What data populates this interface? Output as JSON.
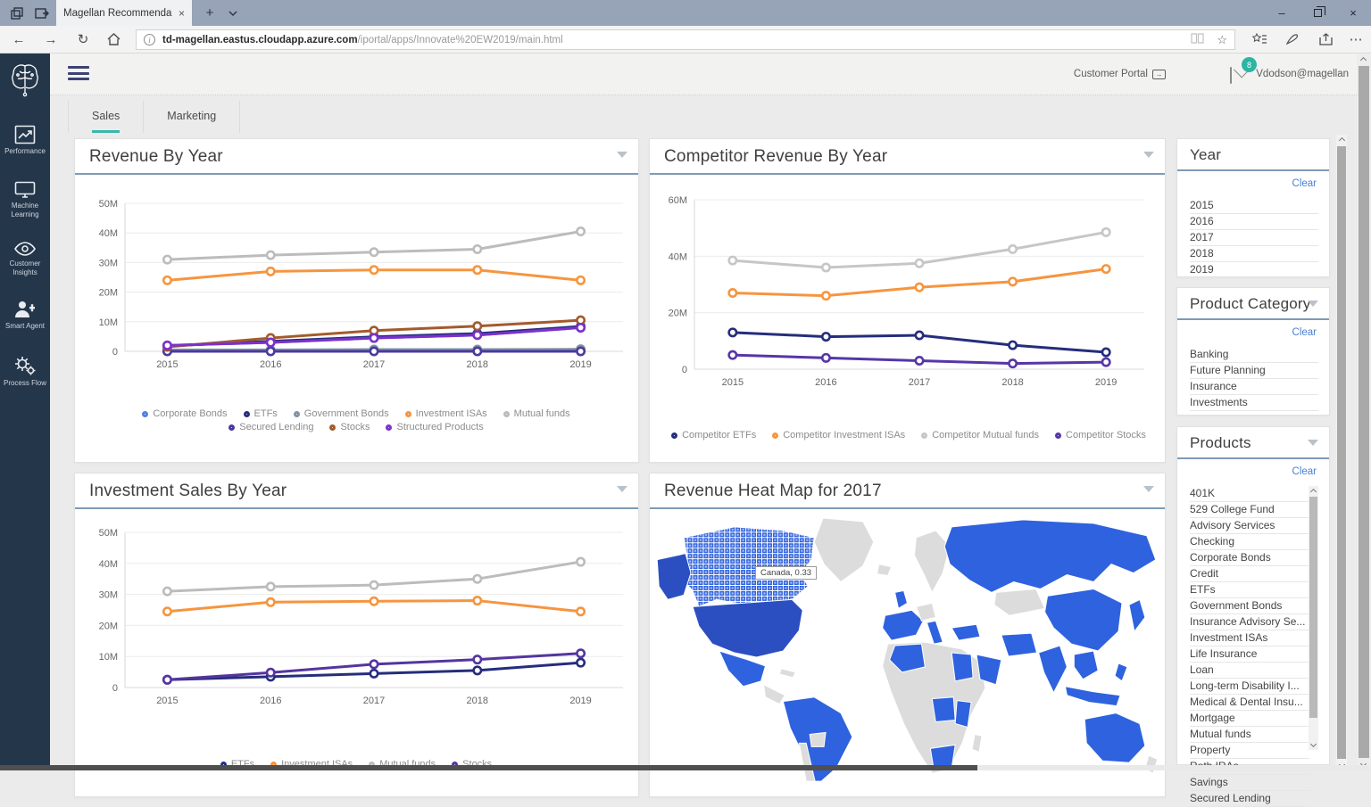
{
  "browser": {
    "tab_title": "Magellan Recommenda",
    "url_domain": "td-magellan.eastus.cloudapp.azure.com",
    "url_path": "/iportal/apps/Innovate%20EW2019/main.html"
  },
  "header": {
    "customer_portal_label": "Customer Portal",
    "unread_count": "8",
    "user_email": "Vdodson@magellan"
  },
  "sidebar": {
    "items": [
      {
        "label": "Performance",
        "icon": "line-chart-icon"
      },
      {
        "label": "Machine Learning",
        "icon": "monitor-icon"
      },
      {
        "label": "Customer Insights",
        "icon": "eye-icon"
      },
      {
        "label": "Smart Agent",
        "icon": "person-plus-icon"
      },
      {
        "label": "Process Flow",
        "icon": "gears-icon"
      }
    ]
  },
  "page_tabs": [
    {
      "label": "Sales",
      "active": true
    },
    {
      "label": "Marketing",
      "active": false
    }
  ],
  "filters": {
    "year": {
      "title": "Year",
      "clear_label": "Clear",
      "options": [
        "2015",
        "2016",
        "2017",
        "2018",
        "2019"
      ]
    },
    "product_category": {
      "title": "Product Category",
      "clear_label": "Clear",
      "options": [
        "Banking",
        "Future Planning",
        "Insurance",
        "Investments"
      ]
    },
    "products": {
      "title": "Products",
      "clear_label": "Clear",
      "options": [
        "401K",
        "529 College Fund",
        "Advisory Services",
        "Checking",
        "Corporate Bonds",
        "Credit",
        "ETFs",
        "Government Bonds",
        "Insurance Advisory Se...",
        "Investment ISAs",
        "Life Insurance",
        "Loan",
        "Long-term Disability I...",
        "Medical & Dental Insu...",
        "Mortgage",
        "Mutual funds",
        "Property",
        "Roth IRAs",
        "Savings",
        "Secured Lending"
      ]
    }
  },
  "chart_data": [
    {
      "type": "line",
      "title": "Revenue By Year",
      "categories": [
        "2015",
        "2016",
        "2017",
        "2018",
        "2019"
      ],
      "ymax": 50,
      "yticks": [
        0,
        10,
        20,
        30,
        40,
        50
      ],
      "ytick_suffix": "M",
      "grid": true,
      "legend_position": "bottom",
      "series": [
        {
          "name": "Corporate Bonds",
          "color": "#4f81e8",
          "values": [
            2,
            3,
            4.5,
            5.5,
            8
          ]
        },
        {
          "name": "ETFs",
          "color": "#252d7c",
          "values": [
            1.8,
            3.4,
            4.9,
            6,
            8.4
          ]
        },
        {
          "name": "Government Bonds",
          "color": "#7f93a6",
          "values": [
            0.5,
            0.5,
            0.6,
            0.6,
            0.7
          ]
        },
        {
          "name": "Investment ISAs",
          "color": "#f6953f",
          "values": [
            24,
            27,
            27.5,
            27.5,
            24
          ]
        },
        {
          "name": "Mutual funds",
          "color": "#bcbcbc",
          "values": [
            31,
            32.5,
            33.5,
            34.5,
            40.5
          ]
        },
        {
          "name": "Secured Lending",
          "color": "#4b3a9e",
          "values": [
            0,
            0,
            0,
            0,
            0
          ]
        },
        {
          "name": "Stocks",
          "color": "#a35b2c",
          "values": [
            1.5,
            4.5,
            7,
            8.5,
            10.5
          ]
        },
        {
          "name": "Structured Products",
          "color": "#7b32c9",
          "values": [
            2,
            3,
            4.5,
            5.5,
            8
          ]
        }
      ]
    },
    {
      "type": "line",
      "title": "Competitor Revenue By Year",
      "categories": [
        "2015",
        "2016",
        "2017",
        "2018",
        "2019"
      ],
      "ymax": 60,
      "yticks": [
        0,
        20,
        40,
        60
      ],
      "ytick_suffix": "M",
      "grid": true,
      "legend_position": "bottom",
      "series": [
        {
          "name": "Competitor ETFs",
          "color": "#252d7c",
          "values": [
            13,
            11.5,
            12,
            8.5,
            6
          ]
        },
        {
          "name": "Competitor Investment ISAs",
          "color": "#f6953f",
          "values": [
            27,
            26,
            29,
            31,
            35.5
          ]
        },
        {
          "name": "Competitor Mutual funds",
          "color": "#c6c6c6",
          "values": [
            38.5,
            36,
            37.5,
            42.5,
            48.5
          ]
        },
        {
          "name": "Competitor Stocks",
          "color": "#5636a8",
          "values": [
            5,
            4,
            3,
            2,
            2.5
          ]
        }
      ]
    },
    {
      "type": "line",
      "title": "Investment Sales By Year",
      "categories": [
        "2015",
        "2016",
        "2017",
        "2018",
        "2019"
      ],
      "ymax": 50,
      "yticks": [
        0,
        10,
        20,
        30,
        40,
        50
      ],
      "ytick_suffix": "M",
      "grid": true,
      "legend_position": "bottom",
      "series": [
        {
          "name": "ETFs",
          "color": "#252d7c",
          "values": [
            2.5,
            3.5,
            4.5,
            5.5,
            8
          ]
        },
        {
          "name": "Investment ISAs",
          "color": "#f6953f",
          "values": [
            24.5,
            27.5,
            27.8,
            28,
            24.5
          ]
        },
        {
          "name": "Mutual funds",
          "color": "#bcbcbc",
          "values": [
            31,
            32.5,
            33,
            35,
            40.5
          ]
        },
        {
          "name": "Stocks",
          "color": "#55359f",
          "values": [
            2.5,
            4.8,
            7.5,
            9,
            11
          ]
        }
      ]
    },
    {
      "type": "heatmap",
      "title": "Revenue Heat Map for 2017",
      "region": "world",
      "tooltip": {
        "label": "Canada",
        "value": 0.33,
        "text": "Canada, 0.33"
      },
      "colors": {
        "active": "#2f62de",
        "highlight": "#2b4fc0",
        "inactive": "#dcdcdc"
      }
    }
  ],
  "colors": {
    "accent_teal": "#3ab7ab",
    "badge_teal": "#2cb5a3",
    "sidebar_bg": "#24364a",
    "link_blue": "#4a7fd1",
    "card_divider": "#7e9ab6",
    "map_blue": "#2f62de",
    "map_dark_blue": "#2b4fc0",
    "map_gray": "#dcdcdc"
  }
}
